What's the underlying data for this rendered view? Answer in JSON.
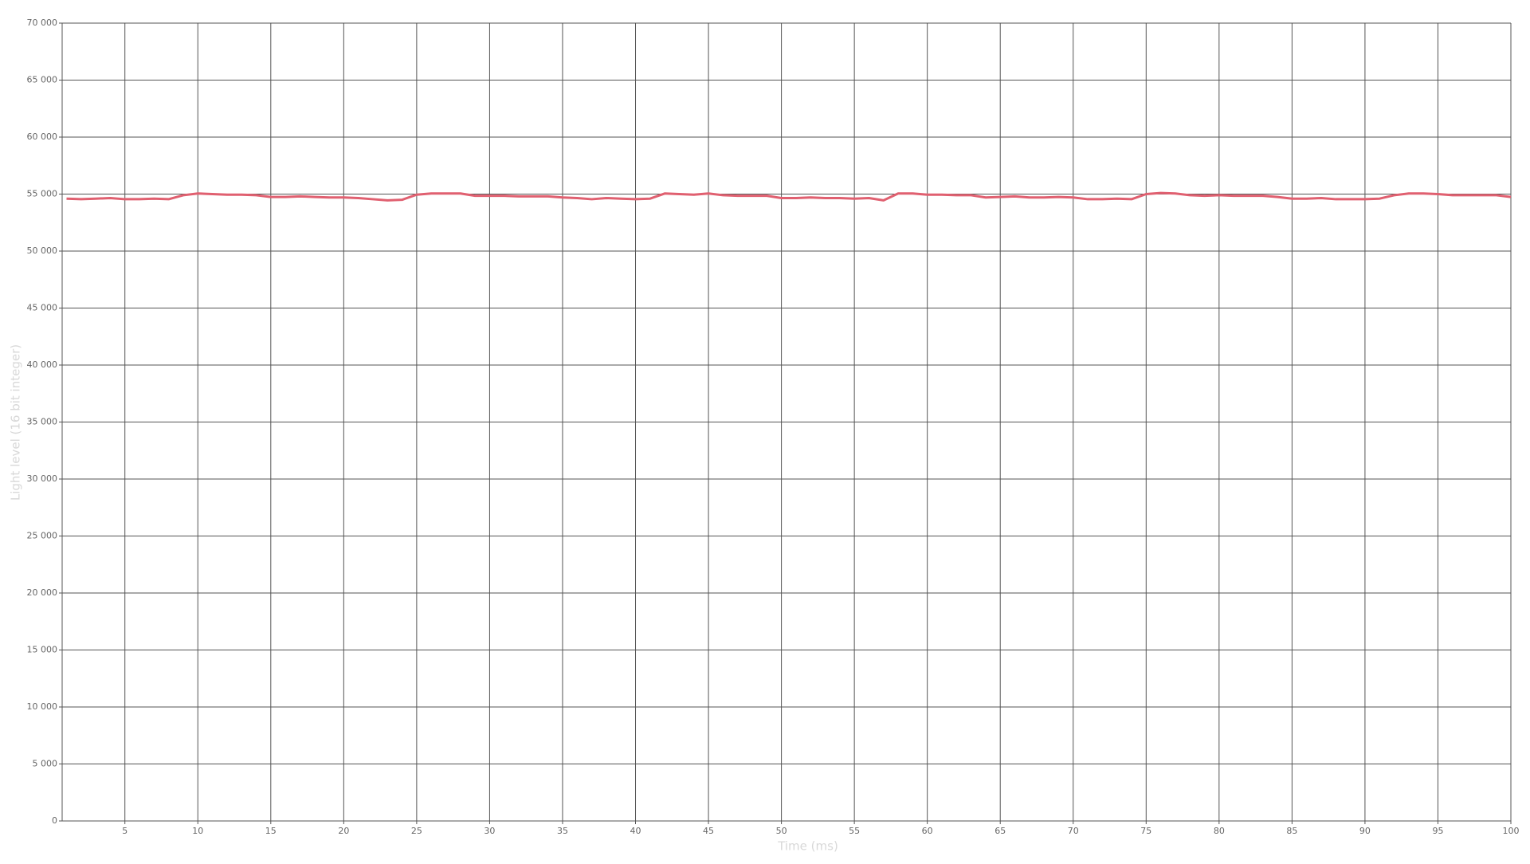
{
  "chart_data": {
    "type": "line",
    "xlabel": "Time (ms)",
    "ylabel": "Light level (16 bit integer)",
    "x": [
      1,
      2,
      3,
      4,
      5,
      6,
      7,
      8,
      9,
      10,
      11,
      12,
      13,
      14,
      15,
      16,
      17,
      18,
      19,
      20,
      21,
      22,
      23,
      24,
      25,
      26,
      27,
      28,
      29,
      30,
      31,
      32,
      33,
      34,
      35,
      36,
      37,
      38,
      39,
      40,
      41,
      42,
      43,
      44,
      45,
      46,
      47,
      48,
      49,
      50,
      51,
      52,
      53,
      54,
      55,
      56,
      57,
      58,
      59,
      60,
      61,
      62,
      63,
      64,
      65,
      66,
      67,
      68,
      69,
      70,
      71,
      72,
      73,
      74,
      75,
      76,
      77,
      78,
      79,
      80,
      81,
      82,
      83,
      84,
      85,
      86,
      87,
      88,
      89,
      90,
      91,
      92,
      93,
      94,
      95,
      96,
      97,
      98,
      99,
      100
    ],
    "series": [
      {
        "color": "#e06070",
        "values": [
          54600,
          54550,
          54600,
          54650,
          54550,
          54550,
          54600,
          54550,
          54900,
          55050,
          55000,
          54950,
          54950,
          54900,
          54750,
          54750,
          54800,
          54750,
          54700,
          54700,
          54650,
          54550,
          54450,
          54500,
          54950,
          55050,
          55050,
          55050,
          54850,
          54850,
          54850,
          54800,
          54800,
          54800,
          54700,
          54650,
          54550,
          54650,
          54600,
          54550,
          54600,
          55050,
          55000,
          54950,
          55050,
          54900,
          54850,
          54850,
          54850,
          54650,
          54650,
          54700,
          54650,
          54650,
          54600,
          54650,
          54450,
          55050,
          55050,
          54950,
          54950,
          54900,
          54900,
          54700,
          54750,
          54800,
          54700,
          54700,
          54750,
          54700,
          54550,
          54550,
          54600,
          54550,
          55000,
          55100,
          55050,
          54900,
          54850,
          54900,
          54850,
          54850,
          54850,
          54750,
          54600,
          54600,
          54650,
          54550,
          54550,
          54550,
          54600,
          54900,
          55050,
          55050,
          55000,
          54900,
          54900,
          54900,
          54900,
          54750
        ]
      }
    ],
    "xlim": [
      0.7,
      100
    ],
    "xticks": [
      5,
      10,
      15,
      20,
      25,
      30,
      35,
      40,
      45,
      50,
      55,
      60,
      65,
      70,
      75,
      80,
      85,
      90,
      95,
      100
    ],
    "ylim": [
      0,
      70000
    ],
    "yticks": [
      0,
      {
        "value": 5000,
        "label": "5 000"
      },
      {
        "value": 10000,
        "label": "10 000"
      },
      {
        "value": 15000,
        "label": "15 000"
      },
      {
        "value": 20000,
        "label": "20 000"
      },
      {
        "value": 25000,
        "label": "25 000"
      },
      {
        "value": 30000,
        "label": "30 000"
      },
      {
        "value": 35000,
        "label": "35 000"
      },
      {
        "value": 40000,
        "label": "40 000"
      },
      {
        "value": 45000,
        "label": "45 000"
      },
      {
        "value": 50000,
        "label": "50 000"
      },
      {
        "value": 55000,
        "label": "55 000"
      },
      {
        "value": 60000,
        "label": "60 000"
      },
      {
        "value": 65000,
        "label": "65 000"
      },
      {
        "value": 70000,
        "label": "70 000"
      }
    ],
    "grid": true
  }
}
